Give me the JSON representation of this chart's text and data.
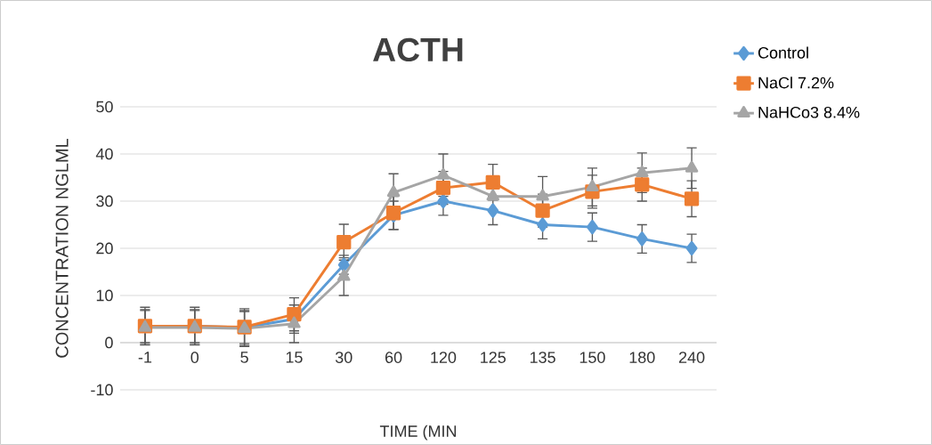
{
  "chart_data": {
    "type": "line",
    "title": "ACTH",
    "xlabel": "TIME (MIN",
    "ylabel": "CONCENTRATION NGLML",
    "categories": [
      "-1",
      "0",
      "5",
      "15",
      "30",
      "60",
      "120",
      "125",
      "135",
      "150",
      "180",
      "240"
    ],
    "series": [
      {
        "name": "Control",
        "color": "#5b9bd5",
        "marker": "diamond",
        "values": [
          3.5,
          3.5,
          3.2,
          5,
          16.5,
          27,
          30,
          28,
          25,
          24.5,
          22,
          20
        ],
        "errors": [
          4,
          4,
          4,
          3,
          2,
          3,
          3,
          3,
          3,
          3,
          3,
          3
        ]
      },
      {
        "name": "NaCl 7.2%",
        "color": "#ed7d31",
        "marker": "square",
        "values": [
          3.5,
          3.5,
          3.3,
          6,
          21.3,
          27.5,
          32.8,
          34,
          28,
          32,
          33.5,
          30.5
        ],
        "errors": [
          3.5,
          3.5,
          3.5,
          3.5,
          3.8,
          3.5,
          3.5,
          3.8,
          3.5,
          3.5,
          3.5,
          3.8
        ]
      },
      {
        "name": "NaHCo3 8.4%",
        "color": "#a5a5a5",
        "marker": "triangle",
        "values": [
          3.2,
          3.2,
          3,
          4,
          14,
          31.8,
          35.5,
          31,
          31,
          33,
          36,
          37
        ],
        "errors": [
          3.6,
          3.6,
          3.6,
          4,
          4,
          4,
          4.5,
          null,
          4.2,
          4,
          4.2,
          4.3
        ]
      }
    ],
    "ylim": [
      -10,
      50
    ],
    "yticks": [
      -10,
      0,
      10,
      20,
      30,
      40,
      50
    ],
    "grid": "y",
    "legend": "top right"
  }
}
